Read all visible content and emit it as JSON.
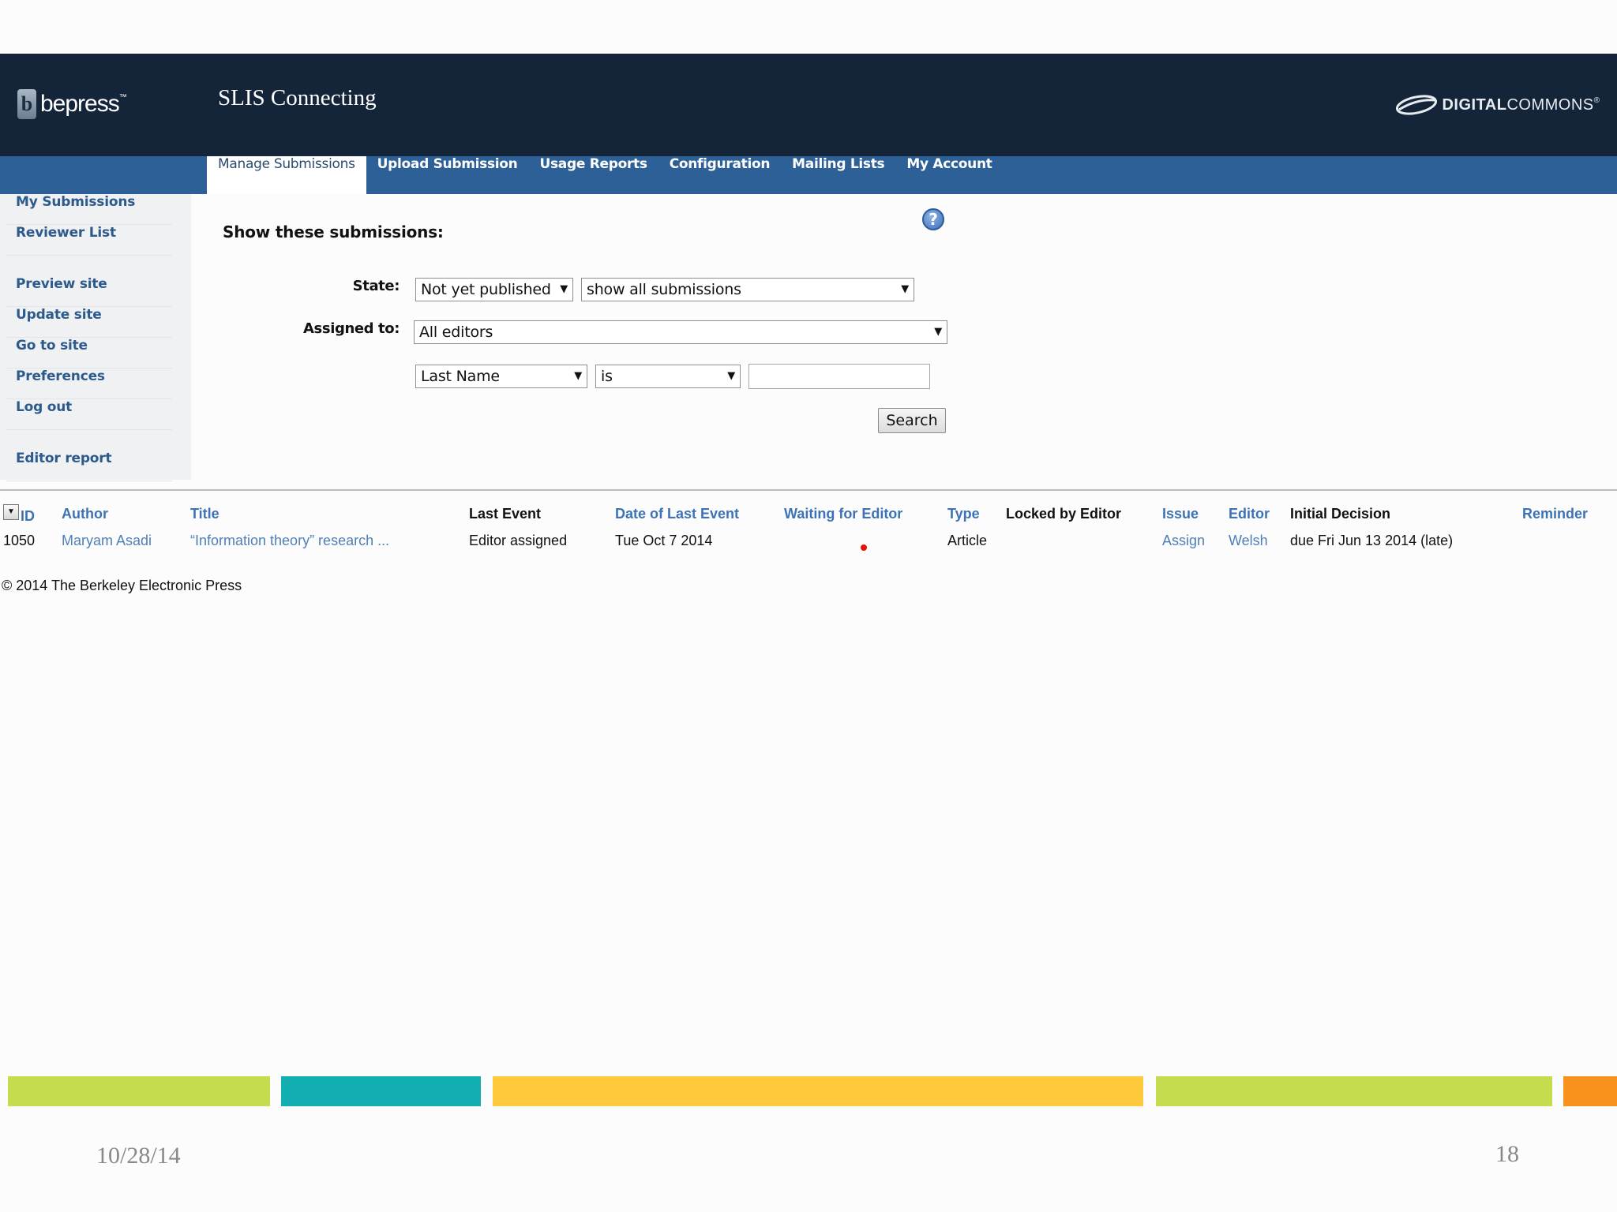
{
  "header": {
    "logo_text": "bepress",
    "logo_tm": "™",
    "site_title": "SLIS Connecting",
    "partner_logo_bold": "DIGITAL",
    "partner_logo_light": "COMMONS",
    "partner_logo_reg": "®",
    "background": "#14253a"
  },
  "nav": {
    "tabs": [
      {
        "label": "Manage Submissions",
        "active": true
      },
      {
        "label": "Upload Submission",
        "active": false
      },
      {
        "label": "Usage Reports",
        "active": false
      },
      {
        "label": "Configuration",
        "active": false
      },
      {
        "label": "Mailing Lists",
        "active": false
      },
      {
        "label": "My Account",
        "active": false
      }
    ],
    "background": "#2e6098"
  },
  "sidebar": {
    "group1": [
      "My Submissions",
      "Reviewer List"
    ],
    "group2": [
      "Preview site",
      "Update site",
      "Go to site",
      "Preferences",
      "Log out"
    ],
    "group3": [
      "Editor report"
    ]
  },
  "form": {
    "title": "Show these submissions:",
    "help_icon": "?",
    "state_label": "State:",
    "state_value": "Not yet published",
    "state_filter_value": "show all submissions",
    "assigned_label": "Assigned to:",
    "assigned_value": "All editors",
    "field_value": "Last Name",
    "operator_value": "is",
    "search_text": "",
    "search_button": "Search",
    "dropdown_arrow": "▼"
  },
  "table": {
    "sort_arrow": "▼",
    "headers": {
      "id": "ID",
      "author": "Author",
      "title": "Title",
      "last_event": "Last Event",
      "date_last_event": "Date of Last Event",
      "waiting": "Waiting for Editor",
      "type": "Type",
      "locked": "Locked by Editor",
      "issue": "Issue",
      "editor": "Editor",
      "initial_decision": "Initial Decision",
      "reminder": "Reminder"
    },
    "rows": [
      {
        "id": "1050",
        "author": "Maryam Asadi",
        "title": "“Information theory” research ...",
        "last_event": "Editor assigned",
        "date_last_event": "Tue Oct 7 2014",
        "type": "Article",
        "issue": "Assign",
        "editor": "Welsh",
        "initial_decision": "due Fri Jun 13 2014 (late)"
      }
    ],
    "waiting_indicator_color": "#e3120b"
  },
  "copyright": "© 2014 The Berkeley Electronic Press",
  "slide_footer": {
    "date": "10/28/14",
    "page_number": "18",
    "bar_colors": [
      "#c5dc4e",
      "#13aeb1",
      "#fec93b",
      "#c5dc4e",
      "#f7921e"
    ]
  }
}
